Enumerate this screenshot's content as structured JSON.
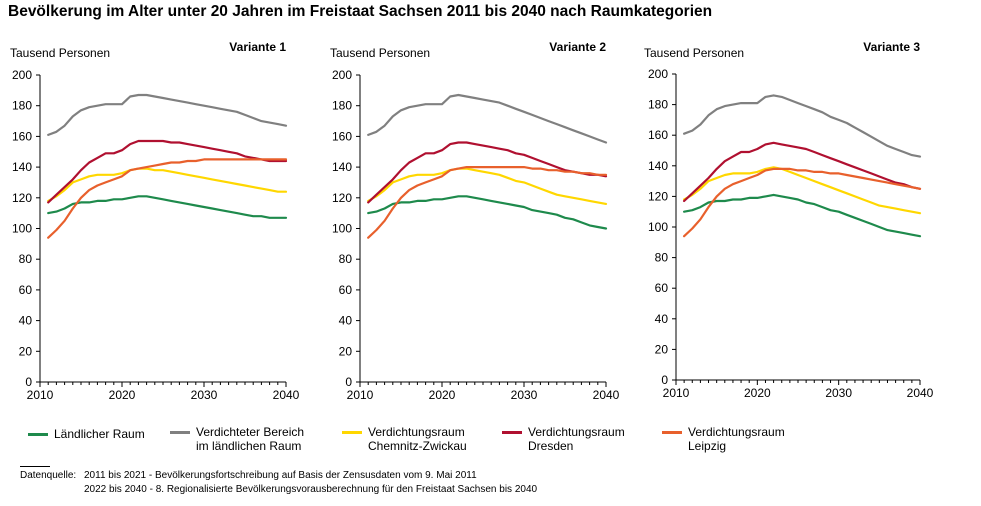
{
  "title": "Bevölkerung im Alter unter 20 Jahren im Freistaat Sachsen 2011 bis 2040 nach Raumkategorien",
  "chart_data": [
    {
      "type": "line",
      "title": "Variante 1",
      "ylabel": "Tausend Personen",
      "xlabel": "",
      "ylim": [
        0,
        200
      ],
      "xlim": [
        2010,
        2040
      ],
      "yticks": [
        0,
        20,
        40,
        60,
        80,
        100,
        120,
        140,
        160,
        180,
        200
      ],
      "xticks": [
        2010,
        2020,
        2030,
        2040
      ],
      "x": [
        2011,
        2012,
        2013,
        2014,
        2015,
        2016,
        2017,
        2018,
        2019,
        2020,
        2021,
        2022,
        2023,
        2024,
        2025,
        2026,
        2027,
        2028,
        2029,
        2030,
        2031,
        2032,
        2033,
        2034,
        2035,
        2036,
        2037,
        2038,
        2039,
        2040
      ],
      "series": [
        {
          "name": "Ländlicher Raum",
          "color": "#1e8a4c",
          "values": [
            110,
            111,
            113,
            116,
            117,
            117,
            118,
            118,
            119,
            119,
            120,
            121,
            121,
            120,
            119,
            118,
            117,
            116,
            115,
            114,
            113,
            112,
            111,
            110,
            109,
            108,
            108,
            107,
            107,
            107
          ]
        },
        {
          "name": "Verdichteter Bereich im ländlichen Raum",
          "color": "#808080",
          "values": [
            161,
            163,
            167,
            173,
            177,
            179,
            180,
            181,
            181,
            181,
            186,
            187,
            187,
            186,
            185,
            184,
            183,
            182,
            181,
            180,
            179,
            178,
            177,
            176,
            174,
            172,
            170,
            169,
            168,
            167
          ]
        },
        {
          "name": "Verdichtungsraum Chemnitz-Zwickau",
          "color": "#ffd700",
          "values": [
            118,
            121,
            125,
            130,
            132,
            134,
            135,
            135,
            135,
            136,
            138,
            139,
            139,
            138,
            138,
            137,
            136,
            135,
            134,
            133,
            132,
            131,
            130,
            129,
            128,
            127,
            126,
            125,
            124,
            124
          ]
        },
        {
          "name": "Verdichtungsraum Dresden",
          "color": "#b01030",
          "values": [
            117,
            122,
            127,
            132,
            138,
            143,
            146,
            149,
            149,
            151,
            155,
            157,
            157,
            157,
            157,
            156,
            156,
            155,
            154,
            153,
            152,
            151,
            150,
            149,
            147,
            146,
            145,
            144,
            144,
            144
          ]
        },
        {
          "name": "Verdichtungsraum Leipzig",
          "color": "#e8602c",
          "values": [
            94,
            99,
            105,
            113,
            120,
            125,
            128,
            130,
            132,
            134,
            138,
            139,
            140,
            141,
            142,
            143,
            143,
            144,
            144,
            145,
            145,
            145,
            145,
            145,
            145,
            145,
            145,
            145,
            145,
            145
          ]
        }
      ]
    },
    {
      "type": "line",
      "title": "Variante 2",
      "ylabel": "Tausend Personen",
      "xlabel": "",
      "ylim": [
        0,
        200
      ],
      "xlim": [
        2010,
        2040
      ],
      "yticks": [
        0,
        20,
        40,
        60,
        80,
        100,
        120,
        140,
        160,
        180,
        200
      ],
      "xticks": [
        2010,
        2020,
        2030,
        2040
      ],
      "x": [
        2011,
        2012,
        2013,
        2014,
        2015,
        2016,
        2017,
        2018,
        2019,
        2020,
        2021,
        2022,
        2023,
        2024,
        2025,
        2026,
        2027,
        2028,
        2029,
        2030,
        2031,
        2032,
        2033,
        2034,
        2035,
        2036,
        2037,
        2038,
        2039,
        2040
      ],
      "series": [
        {
          "name": "Ländlicher Raum",
          "color": "#1e8a4c",
          "values": [
            110,
            111,
            113,
            116,
            117,
            117,
            118,
            118,
            119,
            119,
            120,
            121,
            121,
            120,
            119,
            118,
            117,
            116,
            115,
            114,
            112,
            111,
            110,
            109,
            107,
            106,
            104,
            102,
            101,
            100
          ]
        },
        {
          "name": "Verdichteter Bereich im ländlichen Raum",
          "color": "#808080",
          "values": [
            161,
            163,
            167,
            173,
            177,
            179,
            180,
            181,
            181,
            181,
            186,
            187,
            186,
            185,
            184,
            183,
            182,
            180,
            178,
            176,
            174,
            172,
            170,
            168,
            166,
            164,
            162,
            160,
            158,
            156
          ]
        },
        {
          "name": "Verdichtungsraum Chemnitz-Zwickau",
          "color": "#ffd700",
          "values": [
            118,
            121,
            125,
            130,
            132,
            134,
            135,
            135,
            135,
            136,
            138,
            139,
            139,
            138,
            137,
            136,
            135,
            133,
            131,
            130,
            128,
            126,
            124,
            122,
            121,
            120,
            119,
            118,
            117,
            116
          ]
        },
        {
          "name": "Verdichtungsraum Dresden",
          "color": "#b01030",
          "values": [
            117,
            122,
            127,
            132,
            138,
            143,
            146,
            149,
            149,
            151,
            155,
            156,
            156,
            155,
            154,
            153,
            152,
            151,
            149,
            148,
            146,
            144,
            142,
            140,
            138,
            137,
            136,
            135,
            135,
            134
          ]
        },
        {
          "name": "Verdichtungsraum Leipzig",
          "color": "#e8602c",
          "values": [
            94,
            99,
            105,
            113,
            120,
            125,
            128,
            130,
            132,
            134,
            138,
            139,
            140,
            140,
            140,
            140,
            140,
            140,
            140,
            140,
            139,
            139,
            138,
            138,
            137,
            137,
            136,
            136,
            135,
            135
          ]
        }
      ]
    },
    {
      "type": "line",
      "title": "Variante 3",
      "ylabel": "Tausend Personen",
      "xlabel": "",
      "ylim": [
        0,
        200
      ],
      "xlim": [
        2010,
        2040
      ],
      "yticks": [
        0,
        20,
        40,
        60,
        80,
        100,
        120,
        140,
        160,
        180,
        200
      ],
      "xticks": [
        2010,
        2020,
        2030,
        2040
      ],
      "x": [
        2011,
        2012,
        2013,
        2014,
        2015,
        2016,
        2017,
        2018,
        2019,
        2020,
        2021,
        2022,
        2023,
        2024,
        2025,
        2026,
        2027,
        2028,
        2029,
        2030,
        2031,
        2032,
        2033,
        2034,
        2035,
        2036,
        2037,
        2038,
        2039,
        2040
      ],
      "series": [
        {
          "name": "Ländlicher Raum",
          "color": "#1e8a4c",
          "values": [
            110,
            111,
            113,
            116,
            117,
            117,
            118,
            118,
            119,
            119,
            120,
            121,
            120,
            119,
            118,
            116,
            115,
            113,
            111,
            110,
            108,
            106,
            104,
            102,
            100,
            98,
            97,
            96,
            95,
            94
          ]
        },
        {
          "name": "Verdichteter Bereich im ländlichen Raum",
          "color": "#808080",
          "values": [
            161,
            163,
            167,
            173,
            177,
            179,
            180,
            181,
            181,
            181,
            185,
            186,
            185,
            183,
            181,
            179,
            177,
            175,
            172,
            170,
            168,
            165,
            162,
            159,
            156,
            153,
            151,
            149,
            147,
            146
          ]
        },
        {
          "name": "Verdichtungsraum Chemnitz-Zwickau",
          "color": "#ffd700",
          "values": [
            118,
            121,
            125,
            130,
            132,
            134,
            135,
            135,
            135,
            136,
            138,
            139,
            138,
            136,
            134,
            132,
            130,
            128,
            126,
            124,
            122,
            120,
            118,
            116,
            114,
            113,
            112,
            111,
            110,
            109
          ]
        },
        {
          "name": "Verdichtungsraum Dresden",
          "color": "#b01030",
          "values": [
            117,
            122,
            127,
            132,
            138,
            143,
            146,
            149,
            149,
            151,
            154,
            155,
            154,
            153,
            152,
            151,
            149,
            147,
            145,
            143,
            141,
            139,
            137,
            135,
            133,
            131,
            129,
            128,
            126,
            125
          ]
        },
        {
          "name": "Verdichtungsraum Leipzig",
          "color": "#e8602c",
          "values": [
            94,
            99,
            105,
            113,
            120,
            125,
            128,
            130,
            132,
            134,
            137,
            138,
            138,
            138,
            137,
            137,
            136,
            136,
            135,
            135,
            134,
            133,
            132,
            131,
            130,
            129,
            128,
            127,
            126,
            125
          ]
        }
      ]
    }
  ],
  "legend": [
    {
      "label": "Ländlicher Raum",
      "color": "#1e8a4c"
    },
    {
      "label": "Verdichteter Bereich\nim ländlichen Raum",
      "color": "#808080"
    },
    {
      "label": "Verdichtungsraum\nChemnitz-Zwickau",
      "color": "#ffd700"
    },
    {
      "label": "Verdichtungsraum\nDresden",
      "color": "#b01030"
    },
    {
      "label": "Verdichtungsraum\nLeipzig",
      "color": "#e8602c"
    }
  ],
  "footnote": {
    "label": "Datenquelle:",
    "line1": "2011 bis 2021 - Bevölkerungsfortschreibung auf Basis der Zensusdaten vom 9. Mai 2011",
    "line2": "2022 bis 2040 - 8. Regionalisierte Bevölkerungsvorausberechnung für den Freistaat Sachsen bis 2040"
  }
}
